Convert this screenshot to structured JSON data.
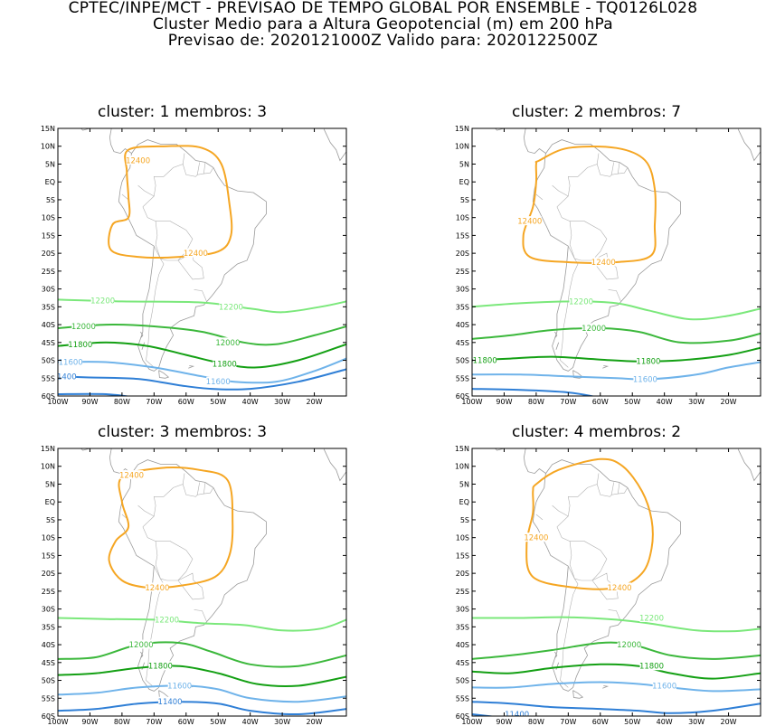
{
  "header": {
    "line1": "CPTEC/INPE/MCT - PREVISAO DE TEMPO GLOBAL POR ENSEMBLE - TQ0126L028",
    "line2": "Cluster Medio para a Altura Geopotencial (m) em 200 hPa",
    "line3": "Previsao de: 2020121000Z    Valido para: 2020122500Z"
  },
  "axes": {
    "lat_labels": [
      "15N",
      "10N",
      "5N",
      "EQ",
      "5S",
      "10S",
      "15S",
      "20S",
      "25S",
      "30S",
      "35S",
      "40S",
      "45S",
      "50S",
      "55S",
      "60S"
    ],
    "lon_labels": [
      "100W",
      "90W",
      "80W",
      "70W",
      "60W",
      "50W",
      "40W",
      "30W",
      "20W"
    ]
  },
  "colors": {
    "c12400": "#f5a623",
    "c12200": "#7be87b",
    "c12000": "#3cb83c",
    "c11800": "#14a014",
    "c11600": "#6fb3ea",
    "c11400": "#2f7fd6",
    "coast": "#9a9a9a"
  },
  "panels": [
    {
      "title": "cluster: 1   membros: 3"
    },
    {
      "title": "cluster: 2   membros: 7"
    },
    {
      "title": "cluster: 3   membros: 3"
    },
    {
      "title": "cluster: 4   membros: 2"
    }
  ],
  "chart_data": [
    {
      "type": "contour",
      "cluster": 1,
      "membros": 3,
      "xlim": [
        "100W",
        "10W"
      ],
      "ylim": [
        "60S",
        "15N"
      ],
      "contours": [
        {
          "level": 12400,
          "labels": [
            "12400",
            "12400"
          ]
        },
        {
          "level": 12200,
          "labels": [
            "12200",
            "12200"
          ]
        },
        {
          "level": 12000,
          "labels": [
            "12000",
            "12000"
          ]
        },
        {
          "level": 11800,
          "labels": [
            "11800",
            "11800"
          ]
        },
        {
          "level": 11600,
          "labels": [
            "11600",
            "11600"
          ]
        },
        {
          "level": 11400,
          "labels": [
            "11400"
          ]
        }
      ]
    },
    {
      "type": "contour",
      "cluster": 2,
      "membros": 7,
      "xlim": [
        "100W",
        "10W"
      ],
      "ylim": [
        "60S",
        "15N"
      ],
      "contours": [
        {
          "level": 12400,
          "labels": [
            "12400",
            "12400"
          ]
        },
        {
          "level": 12200,
          "labels": [
            "12200"
          ]
        },
        {
          "level": 12000,
          "labels": [
            "12000"
          ]
        },
        {
          "level": 11800,
          "labels": [
            "11800",
            "11800"
          ]
        },
        {
          "level": 11600,
          "labels": [
            "11600"
          ]
        }
      ]
    },
    {
      "type": "contour",
      "cluster": 3,
      "membros": 3,
      "xlim": [
        "100W",
        "10W"
      ],
      "ylim": [
        "60S",
        "15N"
      ],
      "contours": [
        {
          "level": 12400,
          "labels": [
            "12400",
            "12400"
          ]
        },
        {
          "level": 12200,
          "labels": [
            "12200"
          ]
        },
        {
          "level": 12000,
          "labels": [
            "12000"
          ]
        },
        {
          "level": 11800,
          "labels": [
            "11800"
          ]
        },
        {
          "level": 11600,
          "labels": [
            "11600"
          ]
        },
        {
          "level": 11400,
          "labels": [
            "11400"
          ]
        }
      ]
    },
    {
      "type": "contour",
      "cluster": 4,
      "membros": 2,
      "xlim": [
        "100W",
        "10W"
      ],
      "ylim": [
        "60S",
        "15N"
      ],
      "contours": [
        {
          "level": 12400,
          "labels": [
            "12400",
            "12400"
          ]
        },
        {
          "level": 12200,
          "labels": [
            "12200"
          ]
        },
        {
          "level": 12000,
          "labels": [
            "12000"
          ]
        },
        {
          "level": 11800,
          "labels": [
            "11800"
          ]
        },
        {
          "level": 11600,
          "labels": [
            "11600"
          ]
        },
        {
          "level": 11400,
          "labels": [
            "11400"
          ]
        }
      ]
    }
  ]
}
